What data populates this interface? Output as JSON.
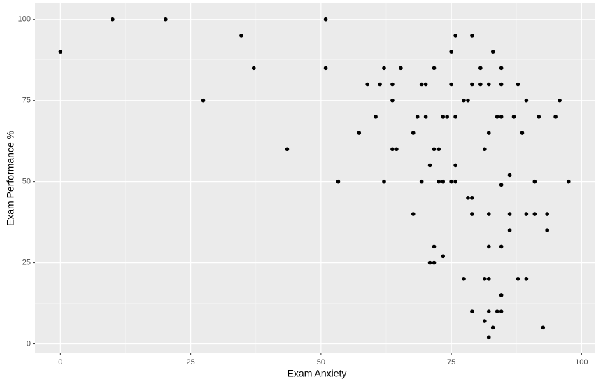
{
  "chart_data": {
    "type": "scatter",
    "x_label": "Exam Anxiety",
    "y_label": "Exam Performance %",
    "x": [
      0,
      10,
      20.2,
      27.4,
      34.7,
      37.1,
      43.5,
      50.9,
      50.9,
      53.3,
      57.3,
      58.9,
      60.5,
      61.3,
      62.1,
      62.1,
      63.7,
      63.7,
      63.7,
      64.5,
      65.3,
      69.3,
      68.5,
      67.7,
      67.7,
      69.3,
      70.1,
      70.1,
      70.9,
      70.9,
      71.7,
      71.7,
      71.7,
      71.7,
      72.6,
      72.6,
      73.4,
      73.4,
      73.4,
      74.2,
      75,
      75,
      75,
      75.8,
      75.8,
      75.8,
      75.8,
      77.4,
      77.4,
      78.2,
      78.2,
      79,
      79,
      79,
      79,
      79,
      80.6,
      80.6,
      81.4,
      81.4,
      81.4,
      82.2,
      82.2,
      82.2,
      82.2,
      82.2,
      82.2,
      82.2,
      83,
      83,
      83.8,
      83.8,
      84.6,
      84.6,
      84.6,
      84.6,
      84.6,
      84.6,
      84.6,
      86.2,
      86.2,
      86.2,
      87,
      87.8,
      87.8,
      88.6,
      89.4,
      89.4,
      89.4,
      91,
      91,
      91.8,
      92.6,
      93.4,
      93.4,
      95,
      95.8,
      97.5
    ],
    "values": [
      90,
      100,
      100,
      75,
      95,
      85,
      60,
      100,
      85,
      50,
      65,
      80,
      70,
      80,
      85,
      50,
      80,
      75,
      60,
      60,
      85,
      50,
      70,
      65,
      40,
      80,
      80,
      70,
      55,
      25,
      25,
      85,
      60,
      30,
      60,
      50,
      50,
      70,
      27,
      70,
      90,
      80,
      50,
      95,
      70,
      55,
      50,
      75,
      20,
      75,
      45,
      95,
      80,
      45,
      40,
      10,
      85,
      80,
      60,
      20,
      7,
      80,
      65,
      40,
      30,
      20,
      10,
      2,
      90,
      5,
      70,
      10,
      85,
      80,
      70,
      49,
      30,
      15,
      10,
      52,
      40,
      35,
      70,
      80,
      20,
      65,
      75,
      40,
      20,
      50,
      40,
      70,
      5,
      40,
      35,
      70,
      75,
      50
    ],
    "color": "#000000",
    "xlim": [
      -4.88,
      102.5
    ],
    "xticks": [
      0,
      25,
      50,
      75,
      100
    ],
    "ylim": [
      -2.9,
      104.9
    ],
    "yticks": [
      0,
      25,
      50,
      75,
      100
    ],
    "grid": true
  }
}
